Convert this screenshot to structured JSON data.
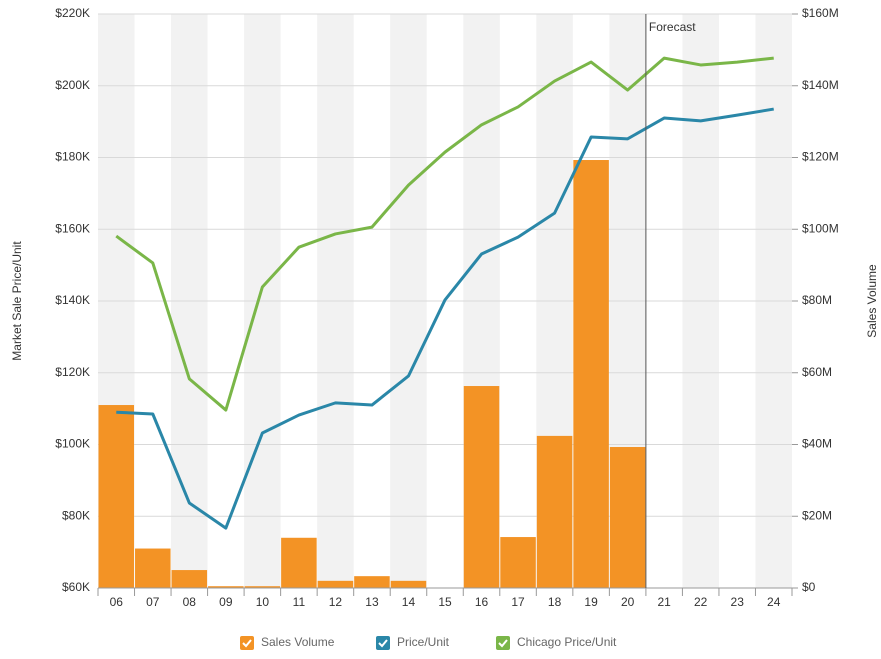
{
  "chart_data": {
    "type": "bar_line",
    "y_label": "Market Sale Price/Unit",
    "y2_label": "Sales Volume",
    "categories": [
      "06",
      "07",
      "08",
      "09",
      "10",
      "11",
      "12",
      "13",
      "14",
      "15",
      "16",
      "17",
      "18",
      "19",
      "20",
      "21",
      "22",
      "23",
      "24"
    ],
    "series": [
      {
        "name": "Sales Volume",
        "type": "bar",
        "axis": "y2",
        "color": "#f39325",
        "values": [
          51,
          11,
          5,
          0.5,
          0.5,
          14,
          2,
          3.3,
          2,
          0,
          56.3,
          14.2,
          42.4,
          119.3,
          39.3,
          null,
          null,
          null,
          null
        ]
      },
      {
        "name": "Price/Unit",
        "type": "line",
        "axis": "y",
        "color": "#2a87a8",
        "values": [
          109,
          108.5,
          83.7,
          76.7,
          103.2,
          108.2,
          111.6,
          111,
          119.1,
          140.3,
          153.1,
          157.8,
          164.5,
          185.7,
          185.2,
          191,
          190.2,
          191.8,
          193.5
        ]
      },
      {
        "name": "Chicago Price/Unit",
        "type": "line",
        "axis": "y",
        "color": "#7ab648",
        "values": [
          158.1,
          150.6,
          118.3,
          109.6,
          143.9,
          155,
          158.7,
          160.6,
          172.3,
          181.5,
          189.1,
          194.1,
          201.3,
          206.6,
          198.8,
          207.7,
          205.8,
          206.6,
          207.7
        ]
      }
    ],
    "ylim": [
      60,
      220
    ],
    "yticks": [
      {
        "value": 60,
        "label": "$60K"
      },
      {
        "value": 80,
        "label": "$80K"
      },
      {
        "value": 100,
        "label": "$100K"
      },
      {
        "value": 120,
        "label": "$120K"
      },
      {
        "value": 140,
        "label": "$140K"
      },
      {
        "value": 160,
        "label": "$160K"
      },
      {
        "value": 180,
        "label": "$180K"
      },
      {
        "value": 200,
        "label": "$200K"
      },
      {
        "value": 220,
        "label": "$220K"
      }
    ],
    "y2lim": [
      0,
      160
    ],
    "y2ticks": [
      {
        "value": 0,
        "label": "$0"
      },
      {
        "value": 20,
        "label": "$20M"
      },
      {
        "value": 40,
        "label": "$40M"
      },
      {
        "value": 60,
        "label": "$60M"
      },
      {
        "value": 80,
        "label": "$80M"
      },
      {
        "value": 100,
        "label": "$100M"
      },
      {
        "value": 120,
        "label": "$120M"
      },
      {
        "value": 140,
        "label": "$140M"
      },
      {
        "value": 160,
        "label": "$160M"
      }
    ],
    "grid": true,
    "annotations": [
      {
        "text": "Forecast",
        "x": "21"
      }
    ],
    "legend": "bottom"
  }
}
